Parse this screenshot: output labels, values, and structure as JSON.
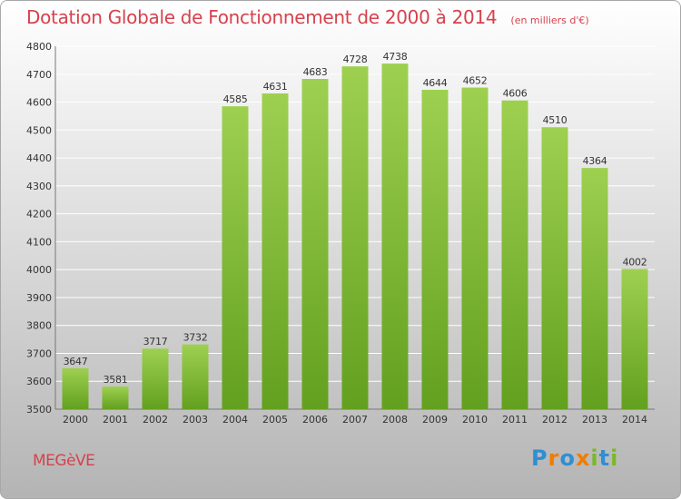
{
  "header": {
    "title": "Dotation Globale de Fonctionnement de 2000 à 2014",
    "subtitle": "(en milliers d'€)"
  },
  "footer": {
    "commune": "MEGèVE",
    "brand": [
      "P",
      "r",
      "o",
      "x",
      "i",
      "t",
      "i"
    ],
    "brand_colors": [
      "#2e8fd4",
      "#f07d00",
      "#2e8fd4",
      "#f07d00",
      "#7ab829",
      "#2e8fd4",
      "#7ab829"
    ]
  },
  "colors": {
    "accent": "#d7414d",
    "bar_top": "#9ed050",
    "bar_bottom": "#63a01f",
    "grid": "#ffffff",
    "label": "#333333"
  },
  "chart_data": {
    "type": "bar",
    "title": "Dotation Globale de Fonctionnement de 2000 à 2014",
    "subtitle": "(en milliers d'€)",
    "categories": [
      "2000",
      "2001",
      "2002",
      "2003",
      "2004",
      "2005",
      "2006",
      "2007",
      "2008",
      "2009",
      "2010",
      "2011",
      "2012",
      "2013",
      "2014"
    ],
    "values": [
      3647,
      3581,
      3717,
      3732,
      4585,
      4631,
      4683,
      4728,
      4738,
      4644,
      4652,
      4606,
      4510,
      4364,
      4002
    ],
    "ylim": [
      3500,
      4800
    ],
    "yticks": [
      3500,
      3600,
      3700,
      3800,
      3900,
      4000,
      4100,
      4200,
      4300,
      4400,
      4500,
      4600,
      4700,
      4800
    ],
    "grid": true,
    "data_labels": true,
    "legend": "none"
  }
}
